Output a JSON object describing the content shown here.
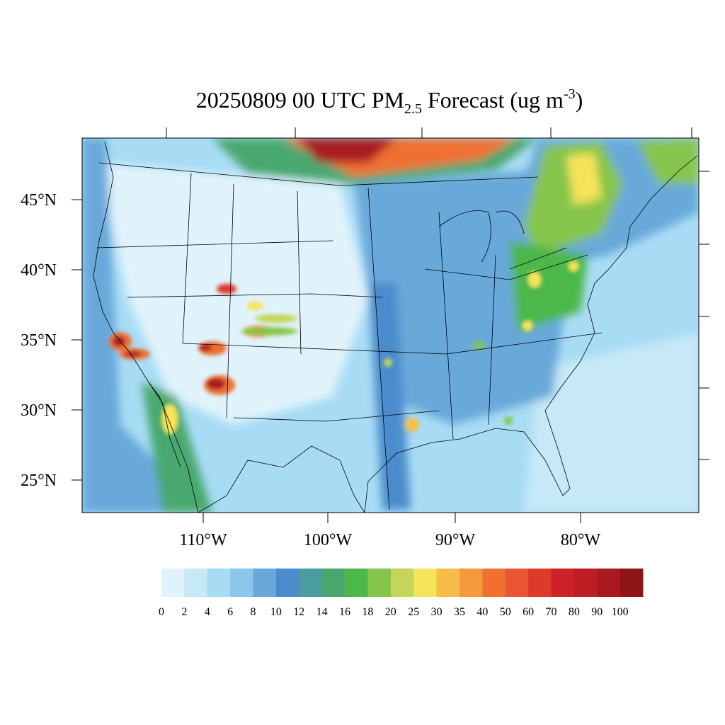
{
  "title": {
    "date": "20250809",
    "hour": "00 UTC PM",
    "subscript": "2.5",
    "rest": "Forecast (ug m",
    "superscript": "-3",
    "close": ")"
  },
  "lat_labels": [
    "45°N",
    "40°N",
    "35°N",
    "30°N",
    "25°N"
  ],
  "lon_labels": [
    "110°W",
    "100°W",
    "90°W",
    "80°W"
  ],
  "colorbar": {
    "labels": [
      0,
      2,
      4,
      6,
      8,
      10,
      12,
      14,
      16,
      18,
      20,
      25,
      30,
      35,
      40,
      50,
      60,
      70,
      80,
      90,
      100
    ],
    "colors": [
      "#e0f3fb",
      "#c6e8f7",
      "#a8dcf5",
      "#8cc6eb",
      "#69a9da",
      "#4b8ccc",
      "#4a9ea0",
      "#4aa86f",
      "#4cb84a",
      "#86c54c",
      "#c4d65a",
      "#f5e35a",
      "#f7bd4a",
      "#f59a3c",
      "#f07030",
      "#e85530",
      "#dc3a2a",
      "#cf2228",
      "#bd1e24",
      "#a81a20",
      "#8f1418"
    ]
  }
}
